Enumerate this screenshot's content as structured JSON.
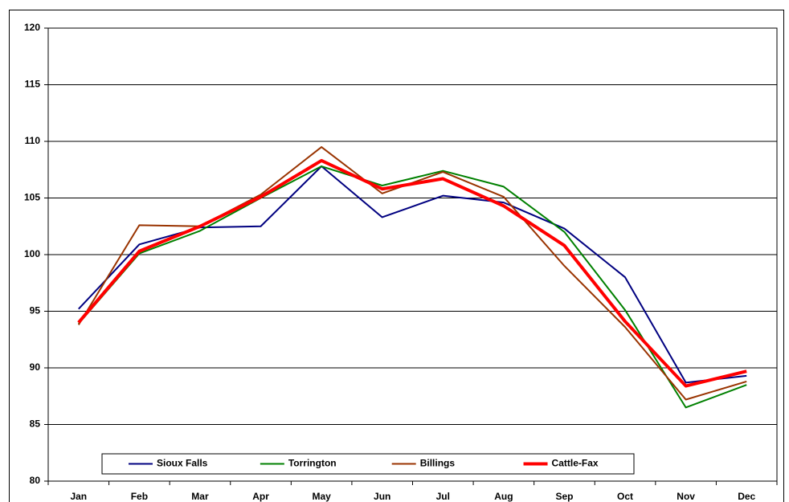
{
  "chart_data": {
    "type": "line",
    "categories": [
      "Jan",
      "Feb",
      "Mar",
      "Apr",
      "May",
      "Jun",
      "Jul",
      "Aug",
      "Sep",
      "Oct",
      "Nov",
      "Dec"
    ],
    "series": [
      {
        "name": "Sioux Falls",
        "color": "#000080",
        "values": [
          95.2,
          100.9,
          102.4,
          102.5,
          107.8,
          103.3,
          105.2,
          104.6,
          102.3,
          98.0,
          88.7,
          89.3
        ]
      },
      {
        "name": "Torrington",
        "color": "#008000",
        "values": [
          93.9,
          100.1,
          102.1,
          105.0,
          107.8,
          106.1,
          107.4,
          106.0,
          102.0,
          95.1,
          86.5,
          88.5
        ]
      },
      {
        "name": "Billings",
        "color": "#993300",
        "values": [
          93.8,
          102.6,
          102.5,
          105.3,
          109.5,
          105.4,
          107.3,
          105.1,
          99.0,
          93.6,
          87.2,
          88.8
        ]
      },
      {
        "name": "Cattle-Fax",
        "color": "#ff0000",
        "values": [
          94.0,
          100.3,
          102.5,
          105.1,
          108.3,
          105.8,
          106.7,
          104.3,
          100.8,
          94.1,
          88.4,
          89.7
        ]
      }
    ],
    "ylim": [
      80,
      120
    ],
    "yticks": [
      80,
      85,
      90,
      95,
      100,
      105,
      110,
      115,
      120
    ],
    "grid": true,
    "legend": "bottom"
  }
}
